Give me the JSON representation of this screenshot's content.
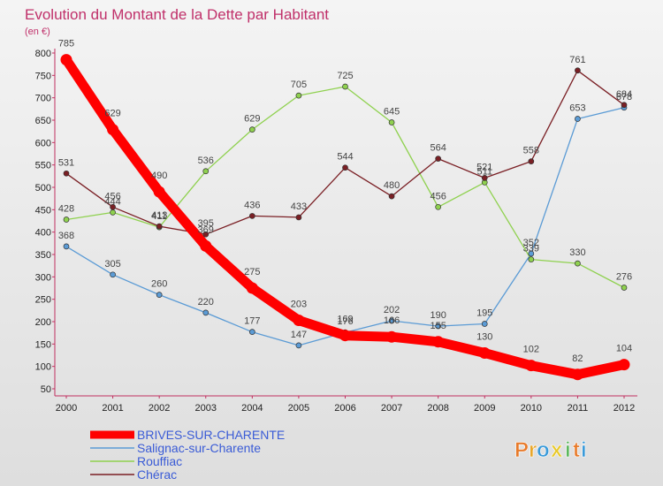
{
  "title": "Evolution du Montant de la Dette par Habitant",
  "subtitle": "(en €)",
  "logo": {
    "text": "Proxiti",
    "letters": [
      "P",
      "r",
      "o",
      "x",
      "i",
      "t",
      "i"
    ],
    "colors": [
      "#e87a2a",
      "#e8a62a",
      "#3a9ad9",
      "#e8c82a",
      "#5cb85c",
      "#e87a2a",
      "#3a9ad9"
    ]
  },
  "chart_data": {
    "type": "line",
    "x": [
      "2000",
      "2001",
      "2002",
      "2003",
      "2004",
      "2005",
      "2006",
      "2007",
      "2008",
      "2009",
      "2010",
      "2011",
      "2012"
    ],
    "ylim": [
      50,
      800
    ],
    "yticks": [
      50,
      100,
      150,
      200,
      250,
      300,
      350,
      400,
      450,
      500,
      550,
      600,
      650,
      700,
      750,
      800
    ],
    "grid": false,
    "legend_position": "bottom-left",
    "series": [
      {
        "name": "BRIVES-SUR-CHARENTE",
        "color": "#ff0000",
        "emphasis": true,
        "values": [
          785,
          629,
          490,
          369,
          275,
          203,
          169,
          166,
          155,
          130,
          102,
          82,
          104
        ]
      },
      {
        "name": "Salignac-sur-Charente",
        "color": "#5b9bd5",
        "emphasis": false,
        "values": [
          368,
          305,
          260,
          220,
          177,
          147,
          176,
          202,
          190,
          195,
          352,
          653,
          678
        ]
      },
      {
        "name": "Rouffiac",
        "color": "#8fd14f",
        "emphasis": false,
        "values": [
          428,
          444,
          411,
          536,
          629,
          705,
          725,
          645,
          456,
          511,
          339,
          330,
          276
        ]
      },
      {
        "name": "Chérac",
        "color": "#7a1f24",
        "emphasis": false,
        "values": [
          531,
          456,
          413,
          395,
          436,
          433,
          544,
          480,
          564,
          521,
          558,
          761,
          684
        ]
      }
    ]
  }
}
